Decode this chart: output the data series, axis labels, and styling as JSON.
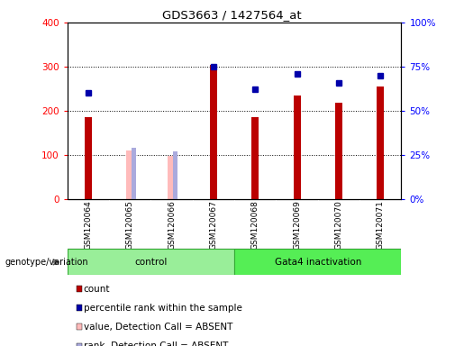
{
  "title": "GDS3663 / 1427564_at",
  "samples": [
    "GSM120064",
    "GSM120065",
    "GSM120066",
    "GSM120067",
    "GSM120068",
    "GSM120069",
    "GSM120070",
    "GSM120071"
  ],
  "count_values": [
    185,
    null,
    null,
    303,
    185,
    235,
    218,
    255
  ],
  "absent_value_bars": [
    null,
    110,
    98,
    null,
    null,
    null,
    null,
    null
  ],
  "percentile_rank": [
    60,
    null,
    null,
    75,
    62,
    71,
    66,
    70
  ],
  "absent_rank_bars": [
    null,
    115,
    108,
    null,
    null,
    null,
    null,
    null
  ],
  "groups": [
    {
      "label": "control",
      "start": 0,
      "end": 4,
      "color": "#99EE99"
    },
    {
      "label": "Gata4 inactivation",
      "start": 4,
      "end": 8,
      "color": "#55EE55"
    }
  ],
  "ylim_left": [
    0,
    400
  ],
  "ylim_right": [
    0,
    100
  ],
  "yticks_left": [
    0,
    100,
    200,
    300,
    400
  ],
  "yticks_right": [
    0,
    25,
    50,
    75,
    100
  ],
  "yticklabels_right": [
    "0%",
    "25%",
    "50%",
    "75%",
    "100%"
  ],
  "grid_values": [
    100,
    200,
    300
  ],
  "bar_color_red": "#BB0000",
  "bar_color_pink": "#FFBBBB",
  "rank_color_blue": "#AAAADD",
  "dot_color_blue": "#0000AA",
  "background_color": "#C8C8C8",
  "plot_bg_color": "#FFFFFF",
  "legend_items": [
    {
      "label": "count",
      "color": "#BB0000"
    },
    {
      "label": "percentile rank within the sample",
      "color": "#0000AA"
    },
    {
      "label": "value, Detection Call = ABSENT",
      "color": "#FFBBBB"
    },
    {
      "label": "rank, Detection Call = ABSENT",
      "color": "#AAAADD"
    }
  ]
}
